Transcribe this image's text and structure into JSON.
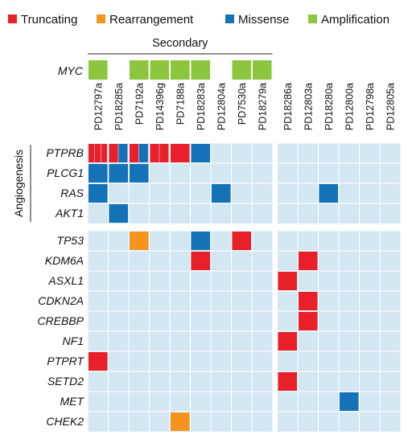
{
  "chart_data": {
    "type": "heatmap",
    "legend": [
      {
        "name": "Truncating",
        "color": "#e8202a"
      },
      {
        "name": "Rearrangement",
        "color": "#f5941d"
      },
      {
        "name": "Missense",
        "color": "#1473b8"
      },
      {
        "name": "Amplification",
        "color": "#8cc63f"
      }
    ],
    "background_color": "#d3e7f3",
    "sample_groups": [
      {
        "label": "Secondary",
        "samples": [
          "PD12797a",
          "PD18285a",
          "PD7192a",
          "PD14396g",
          "PD7188a",
          "PD18283a",
          "PD12804a",
          "PD7530a",
          "PD18279a"
        ]
      },
      {
        "label": "",
        "samples": [
          "PD18286a",
          "PD12803a",
          "PD18280a",
          "PD12800a",
          "PD12798a",
          "PD12805a"
        ]
      }
    ],
    "amplification_gene": "MYC",
    "amplification_samples": [
      "PD12797a",
      "PD7192a",
      "PD14396g",
      "PD7188a",
      "PD18283a",
      "PD7530a",
      "PD18279a"
    ],
    "gene_sections": [
      {
        "label": "Angiogenesis",
        "genes": [
          "PTPRB",
          "PLCG1",
          "RAS",
          "AKT1"
        ]
      },
      {
        "label": "",
        "genes": [
          "TP53",
          "KDM6A",
          "ASXL1",
          "CDKN2A",
          "CREBBP",
          "NF1",
          "PTPRT",
          "SETD2",
          "MET",
          "CHEK2"
        ]
      }
    ],
    "mutations": [
      {
        "gene": "PTPRB",
        "sample": "PD12797a",
        "types": [
          "Truncating",
          "Truncating",
          "Truncating"
        ]
      },
      {
        "gene": "PTPRB",
        "sample": "PD18285a",
        "types": [
          "Truncating",
          "Missense"
        ]
      },
      {
        "gene": "PTPRB",
        "sample": "PD7192a",
        "types": [
          "Truncating",
          "Missense"
        ]
      },
      {
        "gene": "PTPRB",
        "sample": "PD14396g",
        "types": [
          "Truncating",
          "Truncating"
        ]
      },
      {
        "gene": "PTPRB",
        "sample": "PD7188a",
        "types": [
          "Truncating"
        ]
      },
      {
        "gene": "PTPRB",
        "sample": "PD18283a",
        "types": [
          "Missense"
        ]
      },
      {
        "gene": "PLCG1",
        "sample": "PD12797a",
        "types": [
          "Missense"
        ]
      },
      {
        "gene": "PLCG1",
        "sample": "PD18285a",
        "types": [
          "Missense"
        ]
      },
      {
        "gene": "PLCG1",
        "sample": "PD7192a",
        "types": [
          "Missense"
        ]
      },
      {
        "gene": "RAS",
        "sample": "PD12797a",
        "types": [
          "Missense"
        ]
      },
      {
        "gene": "RAS",
        "sample": "PD12804a",
        "types": [
          "Missense"
        ]
      },
      {
        "gene": "RAS",
        "sample": "PD18280a",
        "types": [
          "Missense"
        ]
      },
      {
        "gene": "AKT1",
        "sample": "PD18285a",
        "types": [
          "Missense"
        ]
      },
      {
        "gene": "TP53",
        "sample": "PD7192a",
        "types": [
          "Rearrangement"
        ]
      },
      {
        "gene": "TP53",
        "sample": "PD18283a",
        "types": [
          "Missense"
        ]
      },
      {
        "gene": "TP53",
        "sample": "PD7530a",
        "types": [
          "Truncating"
        ]
      },
      {
        "gene": "KDM6A",
        "sample": "PD18283a",
        "types": [
          "Truncating"
        ]
      },
      {
        "gene": "KDM6A",
        "sample": "PD12803a",
        "types": [
          "Truncating"
        ]
      },
      {
        "gene": "ASXL1",
        "sample": "PD18286a",
        "types": [
          "Truncating"
        ]
      },
      {
        "gene": "CDKN2A",
        "sample": "PD12803a",
        "types": [
          "Truncating"
        ]
      },
      {
        "gene": "CREBBP",
        "sample": "PD12803a",
        "types": [
          "Truncating"
        ]
      },
      {
        "gene": "NF1",
        "sample": "PD18286a",
        "types": [
          "Truncating"
        ]
      },
      {
        "gene": "PTPRT",
        "sample": "PD12797a",
        "types": [
          "Truncating"
        ]
      },
      {
        "gene": "SETD2",
        "sample": "PD18286a",
        "types": [
          "Truncating"
        ]
      },
      {
        "gene": "MET",
        "sample": "PD12800a",
        "types": [
          "Missense"
        ]
      },
      {
        "gene": "CHEK2",
        "sample": "PD7188a",
        "types": [
          "Rearrangement"
        ]
      }
    ]
  }
}
